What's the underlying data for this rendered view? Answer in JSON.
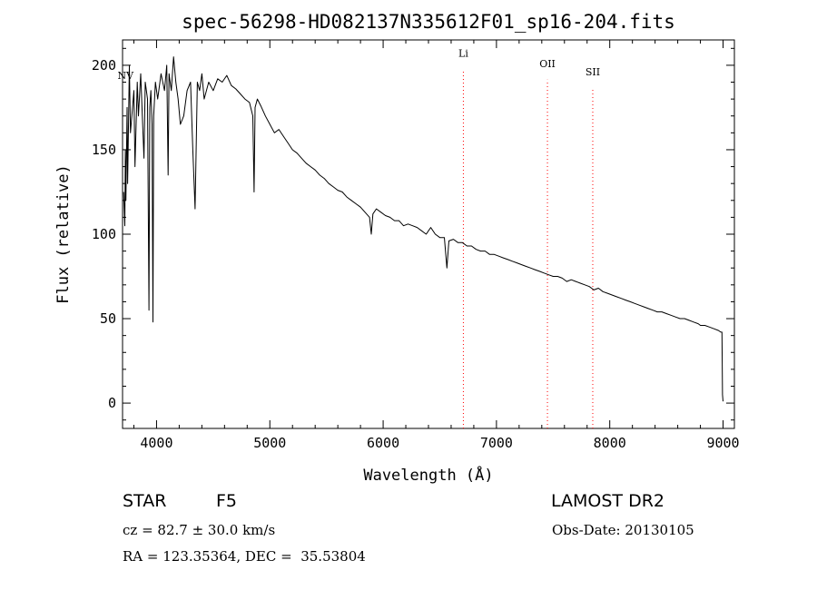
{
  "chart_data": {
    "type": "line",
    "title": "spec-56298-HD082137N335612F01_sp16-204.fits",
    "xlabel": "Wavelength (Å)",
    "ylabel": "Flux (relative)",
    "xlim": [
      3700,
      9100
    ],
    "ylim": [
      -15,
      215
    ],
    "xticks": [
      4000,
      5000,
      6000,
      7000,
      8000,
      9000
    ],
    "yticks": [
      0,
      50,
      100,
      150,
      200
    ],
    "grid": false,
    "line_color": "#000000",
    "marker_color": "#ff0000",
    "series": [
      {
        "x": [
          3710,
          3720,
          3725,
          3730,
          3740,
          3745,
          3760,
          3770,
          3800,
          3810,
          3830,
          3840,
          3860,
          3880,
          3889,
          3900,
          3920,
          3933,
          3940,
          3950,
          3960,
          3968,
          3975,
          3990,
          4010,
          4040,
          4070,
          4090,
          4102,
          4110,
          4130,
          4150,
          4170,
          4190,
          4210,
          4240,
          4270,
          4300,
          4320,
          4340,
          4360,
          4380,
          4400,
          4420,
          4460,
          4500,
          4540,
          4580,
          4620,
          4660,
          4700,
          4740,
          4780,
          4820,
          4850,
          4861,
          4870,
          4890,
          4920,
          4960,
          5000,
          5040,
          5080,
          5120,
          5160,
          5200,
          5240,
          5280,
          5320,
          5360,
          5400,
          5440,
          5480,
          5520,
          5560,
          5600,
          5640,
          5680,
          5720,
          5760,
          5800,
          5840,
          5880,
          5895,
          5910,
          5940,
          5980,
          6020,
          6060,
          6100,
          6140,
          6180,
          6220,
          6260,
          6300,
          6340,
          6380,
          6420,
          6460,
          6500,
          6540,
          6563,
          6580,
          6620,
          6660,
          6700,
          6740,
          6780,
          6820,
          6860,
          6900,
          6940,
          6980,
          7020,
          7060,
          7100,
          7140,
          7180,
          7220,
          7260,
          7300,
          7340,
          7380,
          7420,
          7460,
          7500,
          7540,
          7580,
          7620,
          7660,
          7700,
          7740,
          7780,
          7820,
          7860,
          7900,
          7940,
          7980,
          8020,
          8060,
          8100,
          8140,
          8180,
          8220,
          8260,
          8300,
          8340,
          8380,
          8420,
          8460,
          8500,
          8540,
          8580,
          8620,
          8660,
          8700,
          8740,
          8780,
          8800,
          8840,
          8880,
          8920,
          8960,
          8980,
          8990,
          8995,
          9000
        ],
        "y": [
          125,
          105,
          150,
          120,
          175,
          130,
          200,
          160,
          185,
          140,
          190,
          170,
          195,
          160,
          145,
          190,
          180,
          55,
          175,
          185,
          165,
          48,
          170,
          190,
          180,
          195,
          185,
          200,
          135,
          195,
          185,
          205,
          190,
          180,
          165,
          170,
          185,
          190,
          150,
          115,
          190,
          185,
          195,
          180,
          190,
          185,
          192,
          190,
          194,
          188,
          186,
          183,
          180,
          178,
          170,
          125,
          175,
          180,
          176,
          170,
          165,
          160,
          162,
          158,
          154,
          150,
          148,
          145,
          142,
          140,
          138,
          135,
          133,
          130,
          128,
          126,
          125,
          122,
          120,
          118,
          116,
          113,
          110,
          100,
          112,
          115,
          113,
          111,
          110,
          108,
          108,
          105,
          106,
          105,
          104,
          102,
          100,
          104,
          100,
          98,
          98,
          80,
          96,
          97,
          95,
          95,
          93,
          93,
          91,
          90,
          90,
          88,
          88,
          87,
          86,
          85,
          84,
          83,
          82,
          81,
          80,
          79,
          78,
          77,
          76,
          75,
          75,
          74,
          72,
          73,
          72,
          71,
          70,
          69,
          67,
          68,
          66,
          65,
          64,
          63,
          62,
          61,
          60,
          59,
          58,
          57,
          56,
          55,
          54,
          54,
          53,
          52,
          51,
          50,
          50,
          49,
          48,
          47,
          46,
          46,
          45,
          44,
          43,
          42,
          42,
          5,
          1
        ]
      }
    ],
    "lines": [
      {
        "label": "Li",
        "x": 6708,
        "label_y": 205
      },
      {
        "label": "OII",
        "x": 7450,
        "label_y": 199
      },
      {
        "label": "SII",
        "x": 7850,
        "label_y": 194
      }
    ],
    "annotations": [
      {
        "text": "NV",
        "x": 3720,
        "y": 192
      }
    ]
  },
  "info": {
    "object_type": "STAR",
    "subclass": "F5",
    "survey": "LAMOST DR2",
    "cz": "cz = 82.7 ± 30.0 km/s",
    "obs_date": "Obs-Date: 20130105",
    "radec": "RA = 123.35364, DEC =  35.53804"
  }
}
